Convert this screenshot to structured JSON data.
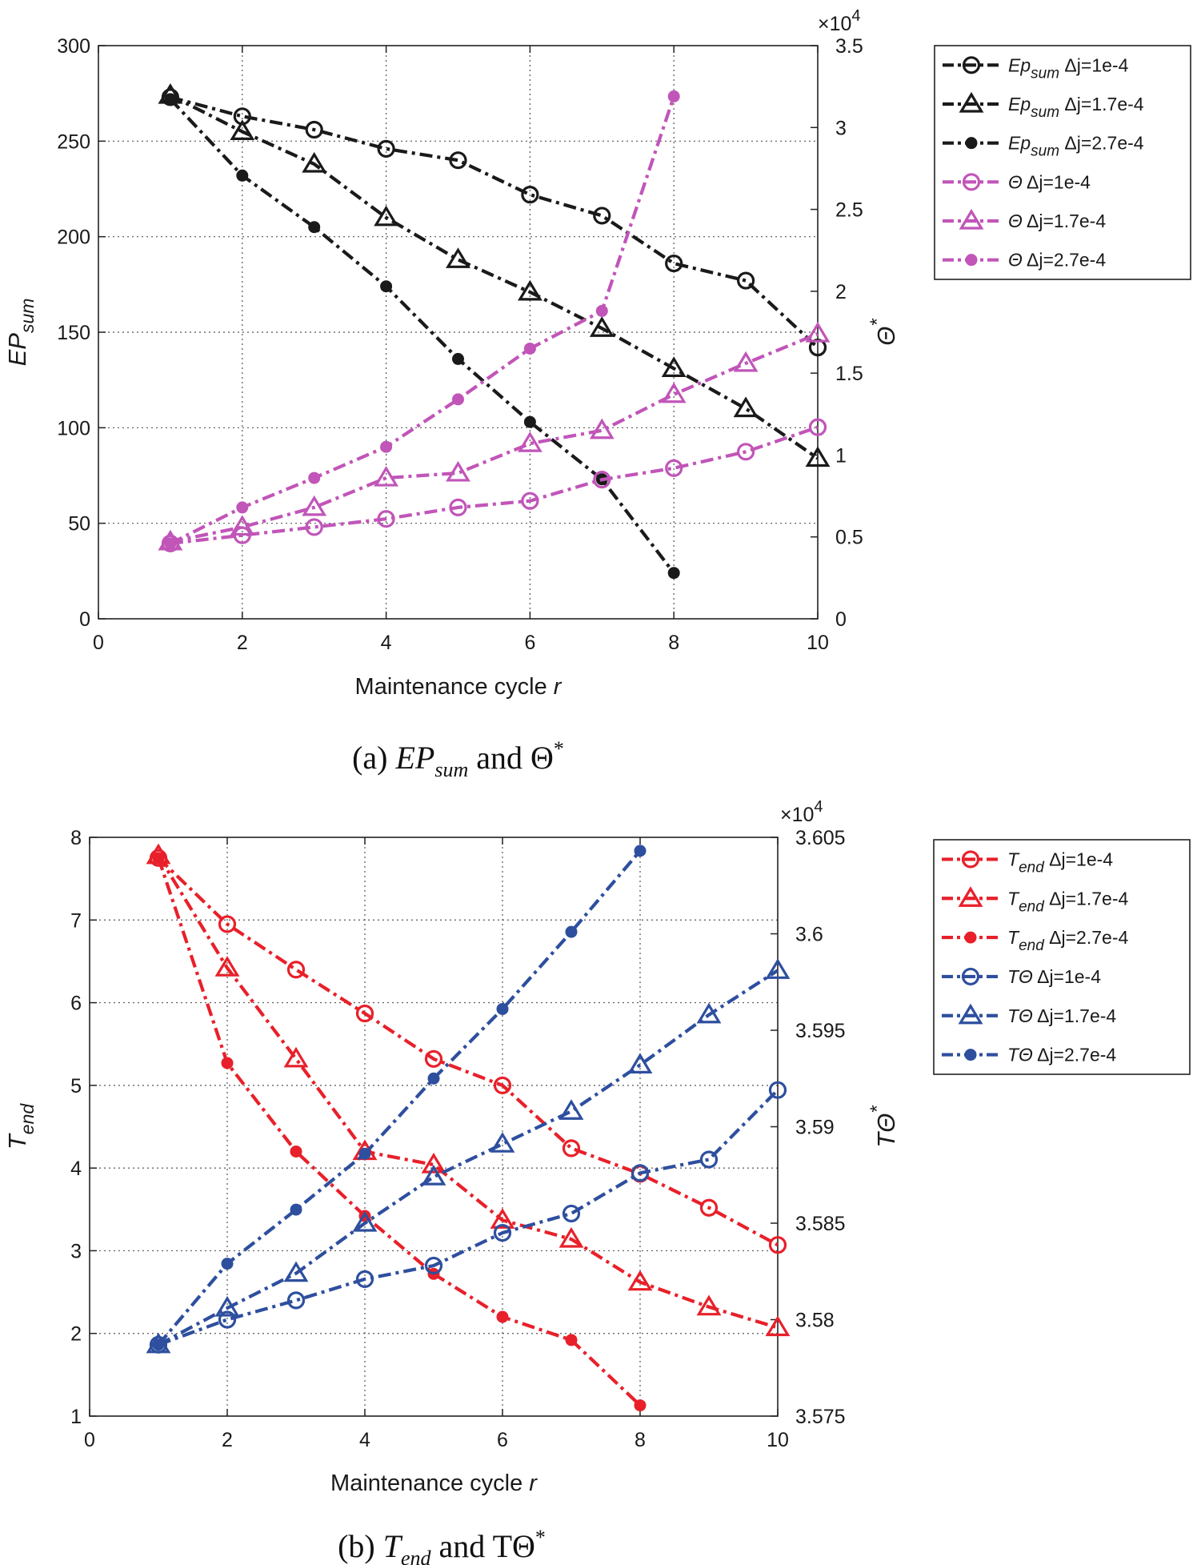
{
  "chart_data": [
    {
      "type": "line",
      "panel": "a",
      "caption": {
        "prefix": "(a) ",
        "sym": "EP",
        "sub": "sum",
        "mid": " and ",
        "tail": "Θ",
        "sup": "*"
      },
      "xlabel": {
        "text": "Maintenance cycle ",
        "var": "r"
      },
      "ylabel_left": {
        "main": "EP",
        "sub": "sum"
      },
      "ylabel_right": {
        "main": "Θ",
        "sup": "*"
      },
      "right_exponent": {
        "base": "×10",
        "exp": "4"
      },
      "xlim": [
        0,
        10
      ],
      "x_ticks": [
        "0",
        "2",
        "4",
        "6",
        "8",
        "10"
      ],
      "ylim_left": [
        0,
        300
      ],
      "y_ticks_left": [
        "0",
        "50",
        "100",
        "150",
        "200",
        "250",
        "300"
      ],
      "ylim_right": [
        0,
        3.5
      ],
      "y_ticks_right": [
        "0",
        "0.5",
        "1",
        "1.5",
        "2",
        "2.5",
        "3",
        "3.5"
      ],
      "grid": true,
      "legend_position": "outside-right-top",
      "series": [
        {
          "name": "Ep sum Δj=1e-4",
          "base": "Ep",
          "sub": "sum",
          "suffix": "Δj=1e-4",
          "axis": "left",
          "color": "#1a1a1a",
          "marker": "circle-open",
          "dash": "dashdot",
          "x": [
            1,
            2,
            3,
            4,
            5,
            6,
            7,
            8,
            9,
            10
          ],
          "values": [
            273,
            263,
            256,
            246,
            240,
            222,
            211,
            186,
            177,
            142
          ]
        },
        {
          "name": "Ep sum Δj=1.7e-4",
          "base": "Ep",
          "sub": "sum",
          "suffix": "Δj=1.7e-4",
          "axis": "left",
          "color": "#1a1a1a",
          "marker": "triangle-open",
          "dash": "dashdot",
          "x": [
            1,
            2,
            3,
            4,
            5,
            6,
            7,
            8,
            9,
            10
          ],
          "values": [
            274,
            255,
            238,
            210,
            188,
            171,
            152,
            131,
            110,
            84
          ]
        },
        {
          "name": "Ep sum Δj=2.7e-4",
          "base": "Ep",
          "sub": "sum",
          "suffix": "Δj=2.7e-4",
          "axis": "left",
          "color": "#1a1a1a",
          "marker": "dot",
          "dash": "dashdot",
          "x": [
            1,
            2,
            3,
            4,
            5,
            6,
            7,
            8
          ],
          "values": [
            272,
            232,
            205,
            174,
            136,
            103,
            73,
            24
          ]
        },
        {
          "name": "Θ Δj=1e-4",
          "base": "Θ",
          "sub": "",
          "suffix": "Δj=1e-4",
          "axis": "right",
          "color": "#c155b8",
          "marker": "circle-open",
          "dash": "dashdot",
          "x": [
            1,
            2,
            3,
            4,
            5,
            6,
            7,
            8,
            9,
            10
          ],
          "values": [
            0.46,
            0.51,
            0.56,
            0.61,
            0.68,
            0.72,
            0.85,
            0.92,
            1.02,
            1.17
          ]
        },
        {
          "name": "Θ Δj=1.7e-4",
          "base": "Θ",
          "sub": "",
          "suffix": "Δj=1.7e-4",
          "axis": "right",
          "color": "#c155b8",
          "marker": "triangle-open",
          "dash": "dashdot",
          "x": [
            1,
            2,
            3,
            4,
            5,
            6,
            7,
            8,
            9,
            10
          ],
          "values": [
            0.47,
            0.56,
            0.68,
            0.86,
            0.89,
            1.07,
            1.15,
            1.37,
            1.56,
            1.74
          ]
        },
        {
          "name": "Θ Δj=2.7e-4",
          "base": "Θ",
          "sub": "",
          "suffix": "Δj=2.7e-4",
          "axis": "right",
          "color": "#c155b8",
          "marker": "dot",
          "dash": "dashdot",
          "x": [
            1,
            2,
            3,
            4,
            5,
            6,
            7,
            8
          ],
          "values": [
            0.46,
            0.68,
            0.86,
            1.05,
            1.34,
            1.65,
            1.88,
            3.19
          ]
        }
      ]
    },
    {
      "type": "line",
      "panel": "b",
      "caption": {
        "prefix": "(b) ",
        "sym": "T",
        "sub": "end",
        "mid": " and ",
        "tail": "TΘ",
        "sup": "*"
      },
      "xlabel": {
        "text": "Maintenance cycle ",
        "var": "r"
      },
      "ylabel_left": {
        "main": "T",
        "sub": "end"
      },
      "ylabel_right": {
        "main": "TΘ",
        "sup": "*"
      },
      "right_exponent": {
        "base": "×10",
        "exp": "4"
      },
      "xlim": [
        0,
        10
      ],
      "x_ticks": [
        "0",
        "2",
        "4",
        "6",
        "8",
        "10"
      ],
      "ylim_left": [
        1,
        8
      ],
      "y_ticks_left": [
        "1",
        "2",
        "3",
        "4",
        "5",
        "6",
        "7",
        "8"
      ],
      "ylim_right": [
        3.575,
        3.605
      ],
      "y_ticks_right": [
        "3.575",
        "3.58",
        "3.585",
        "3.59",
        "3.595",
        "3.6",
        "3.605"
      ],
      "grid": true,
      "legend_position": "outside-right-top",
      "series": [
        {
          "name": "T end Δj=1e-4",
          "base": "T",
          "sub": "end",
          "suffix": "Δj=1e-4",
          "axis": "left",
          "color": "#e8202a",
          "marker": "circle-open",
          "dash": "dashdot",
          "x": [
            1,
            2,
            3,
            4,
            5,
            6,
            7,
            8,
            9,
            10
          ],
          "values": [
            7.75,
            6.95,
            6.4,
            5.87,
            5.32,
            5.0,
            4.24,
            3.93,
            3.52,
            3.07
          ]
        },
        {
          "name": "T end Δj=1.7e-4",
          "base": "T",
          "sub": "end",
          "suffix": "Δj=1.7e-4",
          "axis": "left",
          "color": "#e8202a",
          "marker": "triangle-open",
          "dash": "dashdot",
          "x": [
            1,
            2,
            3,
            4,
            5,
            6,
            7,
            8,
            9,
            10
          ],
          "values": [
            7.78,
            6.42,
            5.32,
            4.2,
            4.04,
            3.37,
            3.14,
            2.62,
            2.32,
            2.07
          ]
        },
        {
          "name": "T end Δj=2.7e-4",
          "base": "T",
          "sub": "end",
          "suffix": "Δj=2.7e-4",
          "axis": "left",
          "color": "#e8202a",
          "marker": "dot",
          "dash": "dashdot",
          "x": [
            1,
            2,
            3,
            4,
            5,
            6,
            7,
            8
          ],
          "values": [
            7.75,
            5.27,
            4.2,
            3.42,
            2.72,
            2.2,
            1.92,
            1.13
          ]
        },
        {
          "name": "TΘ Δj=1e-4",
          "base": "TΘ",
          "sub": "",
          "suffix": "Δj=1e-4",
          "axis": "right",
          "color": "#2e4f9e",
          "marker": "circle-open",
          "dash": "dashdot",
          "x": [
            1,
            2,
            3,
            4,
            5,
            6,
            7,
            8,
            9,
            10
          ],
          "values": [
            3.5787,
            3.58,
            3.581,
            3.5821,
            3.5828,
            3.5845,
            3.5855,
            3.5876,
            3.5883,
            3.5919
          ]
        },
        {
          "name": "TΘ Δj=1.7e-4",
          "base": "TΘ",
          "sub": "",
          "suffix": "Δj=1.7e-4",
          "axis": "right",
          "color": "#2e4f9e",
          "marker": "triangle-open",
          "dash": "dashdot",
          "x": [
            1,
            2,
            3,
            4,
            5,
            6,
            7,
            8,
            9,
            10
          ],
          "values": [
            3.5787,
            3.5806,
            3.5824,
            3.585,
            3.5874,
            3.5891,
            3.5908,
            3.5932,
            3.5958,
            3.5981
          ]
        },
        {
          "name": "TΘ Δj=2.7e-4",
          "base": "TΘ",
          "sub": "",
          "suffix": "Δj=2.7e-4",
          "axis": "right",
          "color": "#2e4f9e",
          "marker": "dot",
          "dash": "dashdot",
          "x": [
            1,
            2,
            3,
            4,
            5,
            6,
            7,
            8
          ],
          "values": [
            3.5787,
            3.5829,
            3.5857,
            3.5886,
            3.5925,
            3.5961,
            3.6001,
            3.6043
          ]
        }
      ]
    }
  ]
}
